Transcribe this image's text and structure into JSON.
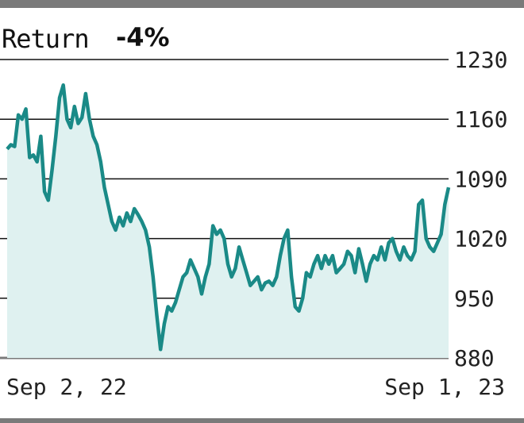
{
  "chart_data": {
    "type": "area",
    "title_label": "Return",
    "title_value": "-4%",
    "xlabel": "",
    "ylabel": "",
    "x_tick_labels": [
      "Sep 2, 22",
      "Sep 1, 23"
    ],
    "y_ticks": [
      880,
      950,
      1020,
      1090,
      1160,
      1230
    ],
    "ylim": [
      880,
      1230
    ],
    "grid": "horizontal",
    "colors": {
      "line": "#1a8a87",
      "fill": "#dff1f0",
      "grid": "#111111",
      "frame": "#7a7a7a"
    },
    "values": [
      1125,
      1130,
      1128,
      1165,
      1160,
      1172,
      1115,
      1118,
      1110,
      1140,
      1075,
      1065,
      1100,
      1140,
      1185,
      1200,
      1160,
      1150,
      1175,
      1155,
      1162,
      1190,
      1160,
      1140,
      1130,
      1110,
      1080,
      1060,
      1040,
      1030,
      1045,
      1035,
      1050,
      1040,
      1055,
      1048,
      1040,
      1030,
      1010,
      975,
      930,
      890,
      920,
      940,
      935,
      945,
      960,
      975,
      980,
      995,
      985,
      975,
      955,
      975,
      990,
      1035,
      1025,
      1030,
      1020,
      990,
      975,
      985,
      1010,
      995,
      980,
      965,
      970,
      975,
      960,
      968,
      970,
      965,
      975,
      1000,
      1020,
      1030,
      975,
      940,
      935,
      950,
      980,
      975,
      990,
      1000,
      985,
      1000,
      990,
      1000,
      980,
      985,
      990,
      1005,
      1000,
      980,
      1008,
      990,
      970,
      990,
      1000,
      995,
      1010,
      995,
      1015,
      1020,
      1005,
      995,
      1010,
      1000,
      995,
      1005,
      1060,
      1065,
      1020,
      1010,
      1005,
      1015,
      1025,
      1060,
      1080
    ]
  }
}
